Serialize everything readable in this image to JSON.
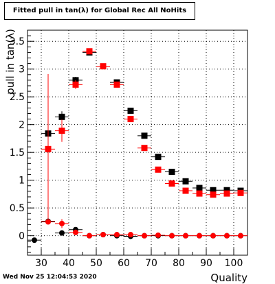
{
  "footer": {
    "timestamp": "Wed Nov 25 12:04:53 2020"
  },
  "chart_data": {
    "type": "scatter",
    "title": "Fitted pull in tan(λ) for Global Rec All NoHits",
    "xlabel": "Quality",
    "ylabel": "pull in tan(λ)",
    "xlim": [
      25,
      105
    ],
    "ylim": [
      -0.35,
      3.7
    ],
    "grid": true,
    "x_ticks": [
      30,
      40,
      50,
      60,
      70,
      80,
      90,
      100
    ],
    "y_ticks": [
      0,
      0.5,
      1,
      1.5,
      2,
      2.5,
      3,
      3.5
    ],
    "x_tick_labels": [
      "30",
      "40",
      "50",
      "60",
      "70",
      "80",
      "90",
      "100"
    ],
    "y_tick_labels": [
      "0",
      "0.5",
      "1",
      "1.5",
      "2",
      "2.5",
      "3",
      "3.5"
    ],
    "series": [
      {
        "color": "#000000",
        "marker": "square",
        "points": [
          {
            "x": 32.5,
            "y": 1.84,
            "ey": 0.12
          },
          {
            "x": 37.5,
            "y": 2.14,
            "ey": 0.1
          },
          {
            "x": 42.5,
            "y": 2.8,
            "ey": 0.06
          },
          {
            "x": 47.5,
            "y": 3.3,
            "ey": 0.04
          },
          {
            "x": 57.5,
            "y": 2.76,
            "ey": 0.04
          },
          {
            "x": 62.5,
            "y": 2.25,
            "ey": 0.03
          },
          {
            "x": 67.5,
            "y": 1.8,
            "ey": 0.03
          },
          {
            "x": 72.5,
            "y": 1.42,
            "ey": 0.02
          },
          {
            "x": 77.5,
            "y": 1.15,
            "ey": 0.02
          },
          {
            "x": 82.5,
            "y": 0.98,
            "ey": 0.02
          },
          {
            "x": 87.5,
            "y": 0.86,
            "ey": 0.02
          },
          {
            "x": 92.5,
            "y": 0.82,
            "ey": 0.02
          },
          {
            "x": 97.5,
            "y": 0.82,
            "ey": 0.02
          },
          {
            "x": 102.5,
            "y": 0.81,
            "ey": 0.02
          }
        ]
      },
      {
        "color": "#ff0000",
        "marker": "square",
        "points": [
          {
            "x": 32.5,
            "y": 1.56,
            "ey": 1.35
          },
          {
            "x": 37.5,
            "y": 1.89,
            "ey": 0.2
          },
          {
            "x": 42.5,
            "y": 2.72,
            "ey": 0.08
          },
          {
            "x": 47.5,
            "y": 3.32,
            "ey": 0.04
          },
          {
            "x": 52.5,
            "y": 3.05,
            "ey": 0.03
          },
          {
            "x": 57.5,
            "y": 2.72,
            "ey": 0.03
          },
          {
            "x": 62.5,
            "y": 2.1,
            "ey": 0.03
          },
          {
            "x": 67.5,
            "y": 1.58,
            "ey": 0.02
          },
          {
            "x": 72.5,
            "y": 1.19,
            "ey": 0.02
          },
          {
            "x": 77.5,
            "y": 0.94,
            "ey": 0.02
          },
          {
            "x": 82.5,
            "y": 0.81,
            "ey": 0.02
          },
          {
            "x": 87.5,
            "y": 0.76,
            "ey": 0.02
          },
          {
            "x": 92.5,
            "y": 0.74,
            "ey": 0.02
          },
          {
            "x": 97.5,
            "y": 0.76,
            "ey": 0.02
          },
          {
            "x": 102.5,
            "y": 0.77,
            "ey": 0.02
          }
        ]
      },
      {
        "color": "#000000",
        "marker": "circle",
        "points": [
          {
            "x": 27.5,
            "y": -0.08,
            "ey": 0.03
          },
          {
            "x": 32.5,
            "y": 0.26,
            "ey": 0.03
          },
          {
            "x": 37.5,
            "y": 0.05,
            "ey": 0.05
          },
          {
            "x": 42.5,
            "y": 0.11,
            "ey": 0.04
          },
          {
            "x": 47.5,
            "y": 0.0,
            "ey": 0.03
          },
          {
            "x": 52.5,
            "y": 0.02,
            "ey": 0.02
          },
          {
            "x": 57.5,
            "y": 0.0,
            "ey": 0.02
          },
          {
            "x": 62.5,
            "y": -0.01,
            "ey": 0.02
          },
          {
            "x": 67.5,
            "y": 0.0,
            "ey": 0.02
          },
          {
            "x": 72.5,
            "y": 0.0,
            "ey": 0.02
          },
          {
            "x": 77.5,
            "y": 0.0,
            "ey": 0.02
          },
          {
            "x": 82.5,
            "y": 0.0,
            "ey": 0.02
          },
          {
            "x": 87.5,
            "y": 0.0,
            "ey": 0.02
          },
          {
            "x": 92.5,
            "y": 0.0,
            "ey": 0.02
          },
          {
            "x": 97.5,
            "y": 0.0,
            "ey": 0.02
          },
          {
            "x": 102.5,
            "y": 0.0,
            "ey": 0.02
          }
        ]
      },
      {
        "color": "#ff0000",
        "marker": "circle",
        "points": [
          {
            "x": 32.5,
            "y": 0.25,
            "ey": 0.05
          },
          {
            "x": 37.5,
            "y": 0.22,
            "ey": 0.08
          },
          {
            "x": 42.5,
            "y": 0.06,
            "ey": 0.05
          },
          {
            "x": 47.5,
            "y": 0.0,
            "ey": 0.03
          },
          {
            "x": 52.5,
            "y": 0.02,
            "ey": 0.02
          },
          {
            "x": 57.5,
            "y": 0.02,
            "ey": 0.02
          },
          {
            "x": 62.5,
            "y": 0.02,
            "ey": 0.02
          },
          {
            "x": 67.5,
            "y": 0.0,
            "ey": 0.02
          },
          {
            "x": 72.5,
            "y": 0.01,
            "ey": 0.02
          },
          {
            "x": 77.5,
            "y": 0.0,
            "ey": 0.02
          },
          {
            "x": 82.5,
            "y": 0.0,
            "ey": 0.02
          },
          {
            "x": 87.5,
            "y": 0.0,
            "ey": 0.02
          },
          {
            "x": 92.5,
            "y": 0.0,
            "ey": 0.02
          },
          {
            "x": 97.5,
            "y": 0.0,
            "ey": 0.02
          },
          {
            "x": 102.5,
            "y": 0.0,
            "ey": 0.02
          }
        ]
      }
    ]
  }
}
